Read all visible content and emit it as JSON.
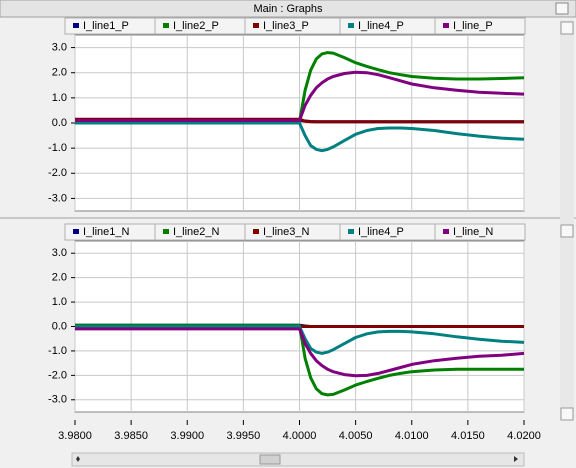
{
  "title": "Main : Graphs",
  "chart_data": [
    {
      "type": "line",
      "x": [
        3.98,
        4.0,
        4.0005,
        4.001,
        4.0015,
        4.002,
        4.0025,
        4.003,
        4.004,
        4.005,
        4.006,
        4.007,
        4.008,
        4.009,
        4.01,
        4.012,
        4.014,
        4.016,
        4.018,
        4.02
      ],
      "xlim": [
        3.98,
        4.02
      ],
      "ylim": [
        -3.5,
        3.5
      ],
      "yticks": [
        {
          "value": 3,
          "label": "3.0"
        },
        {
          "value": 2,
          "label": "2.0"
        },
        {
          "value": 1,
          "label": "1.0"
        },
        {
          "value": 0,
          "label": "0.0"
        },
        {
          "value": -1,
          "label": "-1.0"
        },
        {
          "value": -2,
          "label": "-2.0"
        },
        {
          "value": -3,
          "label": "-3.0"
        }
      ],
      "grid": true,
      "series": [
        {
          "name": "I_line1_P",
          "color": "#000080",
          "values": [
            0.1,
            0.1,
            0.08,
            0.06,
            0.05,
            0.05,
            0.05,
            0.05,
            0.05,
            0.05,
            0.05,
            0.05,
            0.05,
            0.05,
            0.05,
            0.05,
            0.05,
            0.05,
            0.05,
            0.05
          ]
        },
        {
          "name": "I_line2_P",
          "color": "#008000",
          "values": [
            0.05,
            0.05,
            1.3,
            2.1,
            2.55,
            2.75,
            2.8,
            2.78,
            2.6,
            2.4,
            2.25,
            2.12,
            2.0,
            1.92,
            1.85,
            1.78,
            1.75,
            1.75,
            1.77,
            1.8
          ]
        },
        {
          "name": "I_line3_P",
          "color": "#800000",
          "values": [
            0.15,
            0.15,
            0.07,
            0.05,
            0.05,
            0.05,
            0.05,
            0.05,
            0.05,
            0.05,
            0.05,
            0.05,
            0.05,
            0.05,
            0.05,
            0.05,
            0.05,
            0.05,
            0.05,
            0.05
          ]
        },
        {
          "name": "I_line4_P",
          "color": "#008080",
          "values": [
            0.0,
            0.0,
            -0.5,
            -0.9,
            -1.05,
            -1.1,
            -1.05,
            -0.95,
            -0.7,
            -0.45,
            -0.3,
            -0.22,
            -0.2,
            -0.2,
            -0.22,
            -0.3,
            -0.42,
            -0.52,
            -0.6,
            -0.65
          ]
        },
        {
          "name": "I_line_P",
          "color": "#800080",
          "values": [
            0.1,
            0.1,
            0.7,
            1.1,
            1.4,
            1.6,
            1.75,
            1.85,
            1.97,
            2.02,
            2.0,
            1.92,
            1.8,
            1.68,
            1.55,
            1.4,
            1.3,
            1.22,
            1.18,
            1.15
          ]
        }
      ]
    },
    {
      "type": "line",
      "x": [
        3.98,
        4.0,
        4.0005,
        4.001,
        4.0015,
        4.002,
        4.0025,
        4.003,
        4.004,
        4.005,
        4.006,
        4.007,
        4.008,
        4.009,
        4.01,
        4.012,
        4.014,
        4.016,
        4.018,
        4.02
      ],
      "xlim": [
        3.98,
        4.02
      ],
      "xticks": [
        {
          "value": 3.98,
          "label": "3.9800"
        },
        {
          "value": 3.985,
          "label": "3.9850"
        },
        {
          "value": 3.99,
          "label": "3.9900"
        },
        {
          "value": 3.995,
          "label": "3.9950"
        },
        {
          "value": 4.0,
          "label": "4.0000"
        },
        {
          "value": 4.005,
          "label": "4.0050"
        },
        {
          "value": 4.01,
          "label": "4.0100"
        },
        {
          "value": 4.015,
          "label": "4.0150"
        },
        {
          "value": 4.02,
          "label": "4.0200"
        }
      ],
      "ylim": [
        -3.5,
        3.5
      ],
      "yticks": [
        {
          "value": 3,
          "label": "3.0"
        },
        {
          "value": 2,
          "label": "2.0"
        },
        {
          "value": 1,
          "label": "1.0"
        },
        {
          "value": 0,
          "label": "0.0"
        },
        {
          "value": -1,
          "label": "-1.0"
        },
        {
          "value": -2,
          "label": "-2.0"
        },
        {
          "value": -3,
          "label": "-3.0"
        }
      ],
      "grid": true,
      "series": [
        {
          "name": "I_line1_N",
          "color": "#000080",
          "values": [
            0.05,
            0.05,
            0.02,
            0.0,
            0.0,
            0.0,
            0.0,
            0.0,
            0.0,
            0.0,
            0.0,
            0.0,
            0.0,
            0.0,
            0.0,
            0.0,
            0.0,
            0.0,
            0.0,
            0.0
          ]
        },
        {
          "name": "I_line2_N",
          "color": "#008000",
          "values": [
            0.05,
            0.05,
            -1.3,
            -2.1,
            -2.55,
            -2.75,
            -2.8,
            -2.78,
            -2.6,
            -2.4,
            -2.25,
            -2.12,
            -2.0,
            -1.92,
            -1.85,
            -1.78,
            -1.75,
            -1.75,
            -1.75,
            -1.75
          ]
        },
        {
          "name": "I_line3_N",
          "color": "#800000",
          "values": [
            0.0,
            0.0,
            0.0,
            0.0,
            0.0,
            0.0,
            0.0,
            0.0,
            0.0,
            0.0,
            0.0,
            0.0,
            0.0,
            0.0,
            0.0,
            0.0,
            0.0,
            0.0,
            0.0,
            0.0
          ]
        },
        {
          "name": "I_line4_P",
          "color": "#008080",
          "values": [
            0.0,
            0.0,
            -0.5,
            -0.9,
            -1.05,
            -1.1,
            -1.05,
            -0.95,
            -0.7,
            -0.45,
            -0.3,
            -0.22,
            -0.2,
            -0.2,
            -0.22,
            -0.3,
            -0.42,
            -0.52,
            -0.6,
            -0.65
          ]
        },
        {
          "name": "I_line_N",
          "color": "#800080",
          "values": [
            -0.1,
            -0.1,
            -0.7,
            -1.1,
            -1.4,
            -1.6,
            -1.75,
            -1.85,
            -1.97,
            -2.02,
            -2.0,
            -1.92,
            -1.8,
            -1.68,
            -1.55,
            -1.4,
            -1.3,
            -1.22,
            -1.18,
            -1.1
          ]
        }
      ]
    }
  ]
}
